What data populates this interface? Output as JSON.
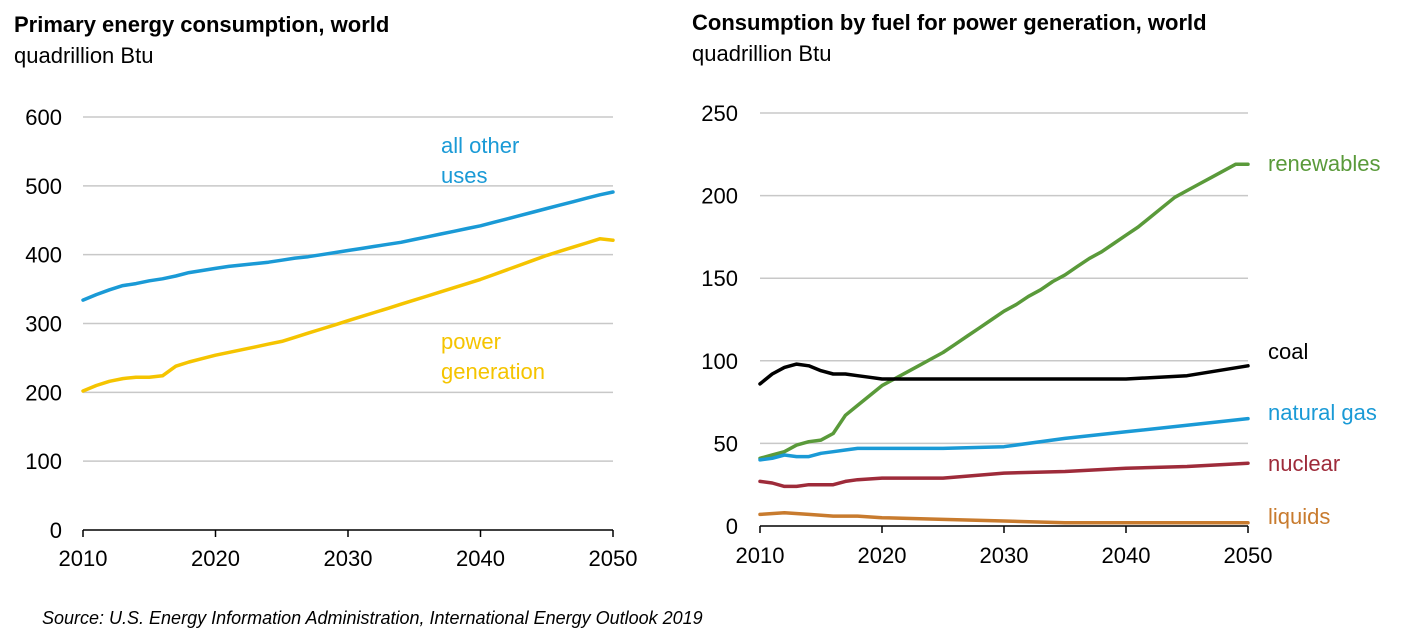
{
  "source": "Source: U.S. Energy Information Administration, International Energy Outlook 2019",
  "chart_data": [
    {
      "type": "line",
      "title": "Primary energy consumption, world",
      "subtitle": "quadrillion Btu",
      "xlim": [
        2010,
        2050
      ],
      "ylim": [
        0,
        600
      ],
      "xticks": [
        "2010",
        "2020",
        "2030",
        "2040",
        "2050"
      ],
      "yticks": [
        "0",
        "100",
        "200",
        "300",
        "400",
        "500",
        "600"
      ],
      "grid": true,
      "series": [
        {
          "name": "all other uses",
          "color": "#1a9ad6",
          "x": [
            2010,
            2011,
            2012,
            2013,
            2014,
            2015,
            2016,
            2017,
            2018,
            2019,
            2020,
            2021,
            2022,
            2023,
            2024,
            2025,
            2026,
            2027,
            2028,
            2029,
            2030,
            2031,
            2032,
            2033,
            2034,
            2035,
            2036,
            2037,
            2038,
            2039,
            2040,
            2041,
            2042,
            2043,
            2044,
            2045,
            2046,
            2047,
            2048,
            2049,
            2050
          ],
          "y": [
            334,
            342,
            349,
            355,
            358,
            362,
            365,
            369,
            374,
            377,
            380,
            383,
            385,
            387,
            389,
            392,
            395,
            397,
            400,
            403,
            406,
            409,
            412,
            415,
            418,
            422,
            426,
            430,
            434,
            438,
            442,
            447,
            452,
            457,
            462,
            467,
            472,
            477,
            482,
            487,
            491
          ]
        },
        {
          "name": "power generation",
          "color": "#f5c400",
          "x": [
            2010,
            2011,
            2012,
            2013,
            2014,
            2015,
            2016,
            2017,
            2018,
            2019,
            2020,
            2021,
            2022,
            2023,
            2024,
            2025,
            2026,
            2027,
            2028,
            2029,
            2030,
            2031,
            2032,
            2033,
            2034,
            2035,
            2036,
            2037,
            2038,
            2039,
            2040,
            2041,
            2042,
            2043,
            2044,
            2045,
            2046,
            2047,
            2048,
            2049,
            2050
          ],
          "y": [
            202,
            210,
            216,
            220,
            222,
            222,
            224,
            238,
            244,
            249,
            254,
            258,
            262,
            266,
            270,
            274,
            280,
            286,
            292,
            298,
            304,
            310,
            316,
            322,
            328,
            334,
            340,
            346,
            352,
            358,
            364,
            371,
            378,
            385,
            392,
            399,
            405,
            411,
            417,
            423,
            421
          ]
        }
      ],
      "annotations": [
        "all other uses",
        "power generation"
      ]
    },
    {
      "type": "line",
      "title": "Consumption by fuel for power generation, world",
      "subtitle": "quadrillion Btu",
      "xlim": [
        2010,
        2050
      ],
      "ylim": [
        0,
        250
      ],
      "xticks": [
        "2010",
        "2020",
        "2030",
        "2040",
        "2050"
      ],
      "yticks": [
        "0",
        "50",
        "100",
        "150",
        "200",
        "250"
      ],
      "grid": true,
      "series": [
        {
          "name": "renewables",
          "color": "#5a9a3a",
          "x": [
            2010,
            2011,
            2012,
            2013,
            2014,
            2015,
            2016,
            2017,
            2018,
            2019,
            2020,
            2021,
            2022,
            2023,
            2024,
            2025,
            2026,
            2027,
            2028,
            2029,
            2030,
            2031,
            2032,
            2033,
            2034,
            2035,
            2036,
            2037,
            2038,
            2039,
            2040,
            2041,
            2042,
            2043,
            2044,
            2045,
            2046,
            2047,
            2048,
            2049,
            2050
          ],
          "y": [
            41,
            43,
            45,
            49,
            51,
            52,
            56,
            67,
            73,
            79,
            85,
            89,
            93,
            97,
            101,
            105,
            110,
            115,
            120,
            125,
            130,
            134,
            139,
            143,
            148,
            152,
            157,
            162,
            166,
            171,
            176,
            181,
            187,
            193,
            199,
            203,
            207,
            211,
            215,
            219,
            219
          ]
        },
        {
          "name": "coal",
          "color": "#000000",
          "x": [
            2010,
            2011,
            2012,
            2013,
            2014,
            2015,
            2016,
            2017,
            2018,
            2019,
            2020,
            2022,
            2025,
            2030,
            2035,
            2040,
            2045,
            2050
          ],
          "y": [
            86,
            92,
            96,
            98,
            97,
            94,
            92,
            92,
            91,
            90,
            89,
            89,
            89,
            89,
            89,
            89,
            91,
            97
          ]
        },
        {
          "name": "natural gas",
          "color": "#1a9ad6",
          "x": [
            2010,
            2011,
            2012,
            2013,
            2014,
            2015,
            2016,
            2017,
            2018,
            2020,
            2025,
            2030,
            2035,
            2040,
            2045,
            2050
          ],
          "y": [
            40,
            41,
            43,
            42,
            42,
            44,
            45,
            46,
            47,
            47,
            47,
            48,
            53,
            57,
            61,
            65
          ]
        },
        {
          "name": "nuclear",
          "color": "#9e2b3a",
          "x": [
            2010,
            2011,
            2012,
            2013,
            2014,
            2015,
            2016,
            2017,
            2018,
            2020,
            2025,
            2030,
            2035,
            2040,
            2045,
            2050
          ],
          "y": [
            27,
            26,
            24,
            24,
            25,
            25,
            25,
            27,
            28,
            29,
            29,
            32,
            33,
            35,
            36,
            38
          ]
        },
        {
          "name": "liquids",
          "color": "#c87b2e",
          "x": [
            2010,
            2012,
            2014,
            2016,
            2018,
            2020,
            2025,
            2030,
            2035,
            2040,
            2045,
            2050
          ],
          "y": [
            7,
            8,
            7,
            6,
            6,
            5,
            4,
            3,
            2,
            2,
            2,
            2
          ]
        }
      ],
      "annotations": [
        "renewables",
        "coal",
        "natural gas",
        "nuclear",
        "liquids"
      ]
    }
  ]
}
